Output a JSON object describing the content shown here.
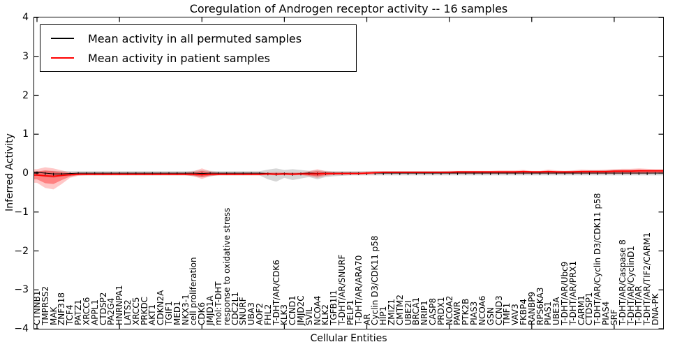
{
  "legend": {
    "entries": [
      {
        "label": "Mean activity in all permuted samples",
        "color": "#000000"
      },
      {
        "label": "Mean activity in patient samples",
        "color": "#ff0000"
      }
    ]
  },
  "chart_data": {
    "type": "area",
    "title": "Coregulation of Androgen receptor activity -- 16 samples",
    "xlabel": "Cellular Entities",
    "ylabel": "Inferred Activity",
    "ylim": [
      -4,
      4
    ],
    "grid": false,
    "legend_position": "upper left",
    "y_ticks": [
      "4",
      "3",
      "2",
      "1",
      "0",
      "−1",
      "−2",
      "−3",
      "−4"
    ],
    "y_tick_values": [
      4,
      3,
      2,
      1,
      0,
      -1,
      -2,
      -3,
      -4
    ],
    "x_major_tick_indices": [
      0,
      10,
      20,
      30,
      40,
      50,
      60,
      70
    ],
    "categories": [
      "CTNNB1",
      "TMPRSS2",
      "MAK",
      "ZNF318",
      "TCF4",
      "PATZ1",
      "XRCC6",
      "APPL1",
      "CTDSP2",
      "PA2G4",
      "HNRNPA1",
      "LATS2",
      "XRCC5",
      "PRKDC",
      "AKT1",
      "CDKN2A",
      "TGIF1",
      "MED1",
      "NKX3-1",
      "cell proliferation",
      "CDK6",
      "JMJD1A",
      "mol:T-DHT",
      "response to oxidative stress",
      "CDC2L1",
      "SNURF",
      "UBA3",
      "AOF2",
      "FHL2",
      "T-DHT/AR/CDK6",
      "KLK3",
      "CCND1",
      "JMJD2C",
      "SVIL",
      "NCOA4",
      "KLK2",
      "TGFB1I1",
      "T-DHT/AR/SNURF",
      "PELP1",
      "T-DHT/AR/ARA70",
      "AR",
      "Cyclin D3/CDK11 p58",
      "HIP1",
      "ZMIZ1",
      "CMTM2",
      "UBE2I",
      "BRCA1",
      "NRIP1",
      "CASP8",
      "PRDX1",
      "NCOA2",
      "PAWR",
      "PTK2B",
      "PIAS3",
      "NCOA6",
      "GSN",
      "CCND3",
      "TMF1",
      "VAV3",
      "FKBP4",
      "RANBP9",
      "RPS6KA3",
      "PIAS1",
      "UBE3A",
      "T-DHT/AR/Ubc9",
      "T-DHT/AR/PRX1",
      "CARM1",
      "CTDSP1",
      "T-DHT/AR/Cyclin D3/CDK11 p58",
      "PIAS4",
      "SRF",
      "T-DHT/AR/Caspase 8",
      "T-DHT/AR/CyclinD1",
      "T-DHT/AR",
      "T-DHT/AR/TIF2/CARM1",
      "DNA-PK"
    ],
    "series": [
      {
        "name": "Mean activity in all permuted samples",
        "color": "#000000",
        "values": [
          0.02,
          0,
          -0.02,
          -0.02,
          -0.01,
          0,
          0,
          0,
          0,
          0,
          0,
          0,
          0,
          0,
          0,
          0,
          0,
          0,
          0,
          0,
          -0.01,
          0,
          0,
          0,
          0,
          0,
          0,
          0,
          -0.01,
          -0.02,
          -0.01,
          -0.02,
          -0.01,
          0,
          -0.01,
          0,
          0,
          0,
          0,
          0,
          0,
          0,
          0,
          0,
          0,
          0,
          0,
          0,
          0,
          0,
          0,
          0,
          0,
          0,
          0,
          0,
          0,
          0,
          0,
          0,
          0,
          0,
          0,
          0,
          0,
          0,
          0,
          0,
          0,
          0,
          0,
          0,
          0,
          0,
          0,
          0
        ]
      },
      {
        "name": "Mean activity in patient samples",
        "color": "#ff0000",
        "values": [
          -0.05,
          -0.07,
          -0.08,
          -0.06,
          -0.04,
          -0.03,
          -0.03,
          -0.03,
          -0.03,
          -0.03,
          -0.03,
          -0.03,
          -0.03,
          -0.03,
          -0.03,
          -0.03,
          -0.03,
          -0.03,
          -0.03,
          -0.03,
          -0.04,
          -0.03,
          -0.03,
          -0.03,
          -0.03,
          -0.03,
          -0.03,
          -0.03,
          -0.02,
          -0.03,
          -0.02,
          -0.03,
          -0.02,
          -0.02,
          -0.02,
          -0.01,
          -0.01,
          -0.01,
          -0.01,
          -0.01,
          0,
          0.01,
          0.02,
          0.02,
          0.02,
          0.02,
          0.02,
          0.02,
          0.02,
          0.02,
          0.02,
          0.03,
          0.03,
          0.03,
          0.03,
          0.03,
          0.03,
          0.03,
          0.03,
          0.04,
          0.03,
          0.03,
          0.04,
          0.03,
          0.03,
          0.03,
          0.04,
          0.04,
          0.04,
          0.04,
          0.05,
          0.05,
          0.05,
          0.06,
          0.06,
          0.06
        ]
      }
    ],
    "bands": [
      {
        "name": "permuted-distribution",
        "color": "#999999",
        "opacity": 0.4,
        "upper": [
          0.05,
          0.06,
          0.06,
          0.05,
          0.05,
          0.05,
          0.05,
          0.05,
          0.05,
          0.05,
          0.05,
          0.05,
          0.05,
          0.05,
          0.05,
          0.05,
          0.05,
          0.05,
          0.05,
          0.06,
          0.07,
          0.06,
          0.05,
          0.05,
          0.05,
          0.05,
          0.05,
          0.05,
          0.09,
          0.12,
          0.08,
          0.1,
          0.08,
          0.06,
          0.07,
          0.06,
          0.05,
          0.05,
          0.05,
          0.05,
          0.05,
          0.05,
          0.05,
          0.05,
          0.05,
          0.05,
          0.05,
          0.05,
          0.05,
          0.05,
          0.05,
          0.05,
          0.05,
          0.05,
          0.05,
          0.05,
          0.05,
          0.05,
          0.05,
          0.06,
          0.05,
          0.05,
          0.06,
          0.05,
          0.05,
          0.06,
          0.06,
          0.07,
          0.07,
          0.07,
          0.08,
          0.08,
          0.08,
          0.08,
          0.07,
          0.07
        ],
        "lower": [
          -0.07,
          -0.1,
          -0.12,
          -0.09,
          -0.07,
          -0.06,
          -0.06,
          -0.06,
          -0.06,
          -0.06,
          -0.06,
          -0.06,
          -0.06,
          -0.06,
          -0.06,
          -0.06,
          -0.06,
          -0.06,
          -0.06,
          -0.08,
          -0.1,
          -0.08,
          -0.06,
          -0.06,
          -0.06,
          -0.06,
          -0.06,
          -0.06,
          -0.16,
          -0.22,
          -0.12,
          -0.18,
          -0.14,
          -0.1,
          -0.16,
          -0.1,
          -0.08,
          -0.07,
          -0.06,
          -0.06,
          -0.06,
          -0.06,
          -0.06,
          -0.06,
          -0.06,
          -0.06,
          -0.06,
          -0.06,
          -0.06,
          -0.06,
          -0.06,
          -0.06,
          -0.06,
          -0.06,
          -0.06,
          -0.06,
          -0.06,
          -0.06,
          -0.06,
          -0.06,
          -0.06,
          -0.06,
          -0.06,
          -0.06,
          -0.06,
          -0.06,
          -0.06,
          -0.06,
          -0.06,
          -0.06,
          -0.06,
          -0.06,
          -0.06,
          -0.06,
          -0.06,
          -0.06
        ]
      },
      {
        "name": "patient-distribution-outer",
        "color": "#ff0000",
        "opacity": 0.22,
        "upper": [
          0.1,
          0.15,
          0.12,
          0.07,
          0.02,
          0.01,
          0.01,
          0.01,
          0.01,
          0.01,
          0.01,
          0.01,
          0.01,
          0.01,
          0.01,
          0.01,
          0.01,
          0.01,
          0.01,
          0.05,
          0.12,
          0.05,
          0.01,
          0.01,
          0.01,
          0.01,
          0.01,
          0.01,
          0.02,
          0.03,
          0.02,
          0.02,
          0.02,
          0.05,
          0.1,
          0.05,
          0.03,
          0.03,
          0.03,
          0.03,
          0.04,
          0.05,
          0.05,
          0.05,
          0.05,
          0.05,
          0.05,
          0.05,
          0.05,
          0.05,
          0.06,
          0.06,
          0.06,
          0.06,
          0.06,
          0.06,
          0.07,
          0.07,
          0.07,
          0.08,
          0.06,
          0.06,
          0.09,
          0.07,
          0.06,
          0.07,
          0.09,
          0.08,
          0.08,
          0.09,
          0.1,
          0.11,
          0.11,
          0.12,
          0.11,
          0.1
        ],
        "lower": [
          -0.25,
          -0.38,
          -0.42,
          -0.28,
          -0.12,
          -0.07,
          -0.06,
          -0.06,
          -0.06,
          -0.06,
          -0.06,
          -0.06,
          -0.06,
          -0.06,
          -0.06,
          -0.06,
          -0.06,
          -0.06,
          -0.06,
          -0.08,
          -0.15,
          -0.08,
          -0.06,
          -0.06,
          -0.06,
          -0.06,
          -0.06,
          -0.06,
          -0.05,
          -0.06,
          -0.05,
          -0.06,
          -0.05,
          -0.08,
          -0.12,
          -0.07,
          -0.05,
          -0.05,
          -0.04,
          -0.04,
          -0.04,
          -0.03,
          -0.02,
          -0.02,
          -0.02,
          -0.02,
          -0.02,
          -0.02,
          -0.02,
          -0.02,
          -0.02,
          -0.02,
          -0.02,
          -0.02,
          -0.02,
          -0.02,
          -0.02,
          -0.02,
          -0.02,
          -0.02,
          -0.02,
          -0.02,
          -0.02,
          -0.02,
          -0.02,
          -0.02,
          -0.02,
          -0.02,
          -0.02,
          -0.02,
          -0.02,
          -0.02,
          -0.02,
          -0.02,
          -0.02,
          -0.01
        ]
      },
      {
        "name": "patient-distribution-inner",
        "color": "#ff0000",
        "opacity": 0.35,
        "upper": [
          0.04,
          0.07,
          0.05,
          0.02,
          0.0,
          -0.01,
          -0.01,
          -0.01,
          -0.01,
          -0.01,
          -0.01,
          -0.01,
          -0.01,
          -0.01,
          -0.01,
          -0.01,
          -0.01,
          -0.01,
          -0.01,
          0.01,
          0.06,
          0.01,
          -0.01,
          -0.01,
          -0.01,
          -0.01,
          -0.01,
          -0.01,
          0.0,
          0.0,
          0.0,
          0.0,
          0.0,
          0.02,
          0.05,
          0.02,
          0.01,
          0.01,
          0.01,
          0.01,
          0.02,
          0.03,
          0.04,
          0.04,
          0.04,
          0.04,
          0.04,
          0.04,
          0.04,
          0.04,
          0.04,
          0.05,
          0.05,
          0.05,
          0.05,
          0.05,
          0.05,
          0.05,
          0.05,
          0.06,
          0.05,
          0.05,
          0.06,
          0.05,
          0.05,
          0.05,
          0.06,
          0.06,
          0.06,
          0.06,
          0.07,
          0.08,
          0.08,
          0.09,
          0.08,
          0.08
        ],
        "lower": [
          -0.16,
          -0.26,
          -0.28,
          -0.18,
          -0.09,
          -0.05,
          -0.05,
          -0.05,
          -0.05,
          -0.05,
          -0.05,
          -0.05,
          -0.05,
          -0.05,
          -0.05,
          -0.05,
          -0.05,
          -0.05,
          -0.05,
          -0.06,
          -0.1,
          -0.06,
          -0.05,
          -0.05,
          -0.05,
          -0.05,
          -0.05,
          -0.05,
          -0.04,
          -0.05,
          -0.04,
          -0.05,
          -0.04,
          -0.06,
          -0.08,
          -0.05,
          -0.04,
          -0.03,
          -0.03,
          -0.03,
          -0.02,
          -0.01,
          0,
          0,
          0,
          0,
          0,
          0,
          0,
          0,
          0,
          0,
          0,
          0,
          0,
          0,
          0,
          0,
          0,
          0,
          0,
          0,
          0,
          0,
          0,
          0,
          0,
          0,
          0,
          0,
          0,
          0,
          0,
          0,
          0,
          0.01
        ]
      }
    ]
  }
}
